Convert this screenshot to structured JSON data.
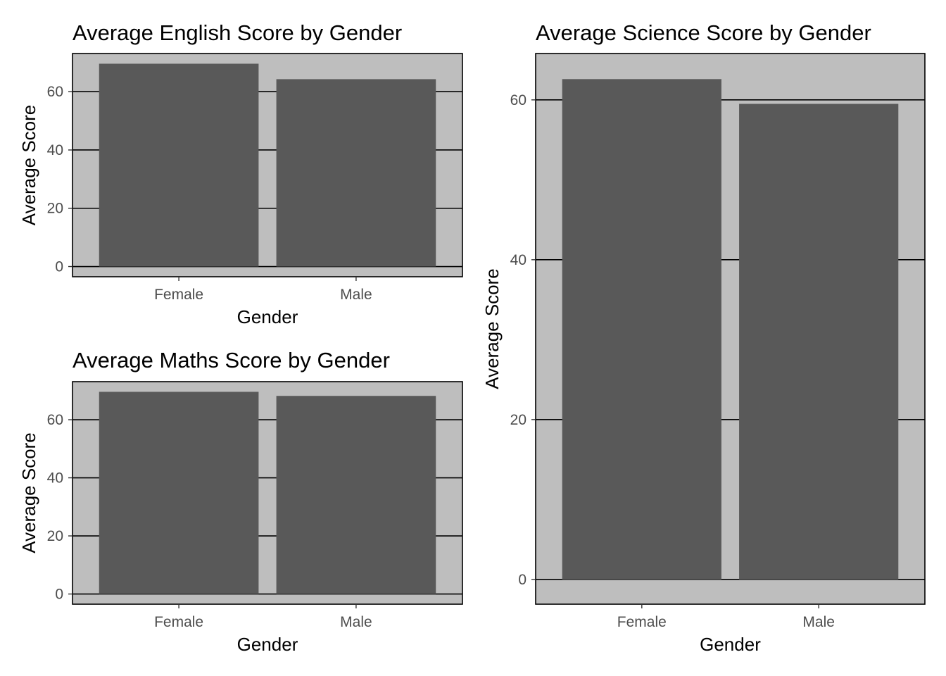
{
  "chart_data": [
    {
      "type": "bar",
      "title": "Average English Score by Gender",
      "xlabel": "Gender",
      "ylabel": "Average Score",
      "categories": [
        "Female",
        "Male"
      ],
      "values": [
        69.6,
        64.3
      ],
      "ylim": [
        -3.5,
        73.1
      ],
      "yticks": [
        0,
        20,
        40,
        60
      ],
      "grid": "horizontal major lines",
      "colors": {
        "panel": "#bebebe",
        "bar": "#595959",
        "grid": "#000000"
      }
    },
    {
      "type": "bar",
      "title": "Average Maths Score by Gender",
      "xlabel": "Gender",
      "ylabel": "Average Score",
      "categories": [
        "Female",
        "Male"
      ],
      "values": [
        69.6,
        68.2
      ],
      "ylim": [
        -3.5,
        73.1
      ],
      "yticks": [
        0,
        20,
        40,
        60
      ],
      "grid": "horizontal major lines",
      "colors": {
        "panel": "#bebebe",
        "bar": "#595959",
        "grid": "#000000"
      }
    },
    {
      "type": "bar",
      "title": "Average Science Score by Gender",
      "xlabel": "Gender",
      "ylabel": "Average Score",
      "categories": [
        "Female",
        "Male"
      ],
      "values": [
        62.6,
        59.5
      ],
      "ylim": [
        -3.1,
        65.8
      ],
      "yticks": [
        0,
        20,
        40,
        60
      ],
      "grid": "horizontal major lines",
      "colors": {
        "panel": "#bebebe",
        "bar": "#595959",
        "grid": "#000000"
      }
    }
  ]
}
